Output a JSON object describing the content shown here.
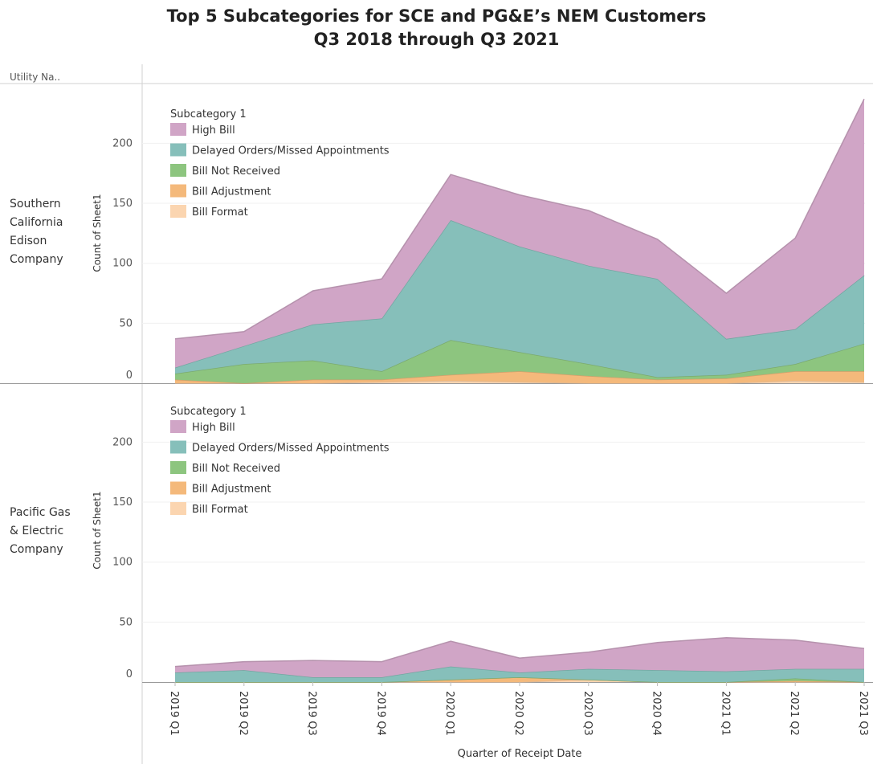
{
  "title": [
    "Top 5 Subcategories for SCE and PG&E’s NEM Customers",
    "Q3 2018 through Q3 2021"
  ],
  "row_header": "Utility Na..",
  "colors": {
    "High Bill": "#d0a5c6",
    "Delayed Orders/Missed Appointments": "#86bfba",
    "Bill Not Received": "#8dc57f",
    "Bill Adjustment": "#f4b97b",
    "Bill Format": "#fbd5b0"
  },
  "chart_data": [
    {
      "type": "area",
      "stacked": true,
      "panel": "Southern California Edison Company",
      "row_label": [
        "Southern",
        "California",
        "Edison",
        "Company"
      ],
      "xlabel": "Quarter of Receipt Date",
      "ylabel": "Count of Sheet1",
      "ylim": [
        0,
        240
      ],
      "yticks": [
        0,
        50,
        100,
        150,
        200
      ],
      "legend_title": "Subcategory 1",
      "legend_position": "top-left",
      "categories": [
        "2019 Q1",
        "2019 Q2",
        "2019 Q3",
        "2019 Q4",
        "2020 Q1",
        "2020 Q2",
        "2020 Q3",
        "2020 Q4",
        "2021 Q1",
        "2021 Q2",
        "2021 Q3"
      ],
      "series": [
        {
          "name": "Bill Format",
          "values": [
            0,
            0,
            0,
            1,
            2,
            1,
            0,
            0,
            0,
            2,
            1
          ]
        },
        {
          "name": "Bill Adjustment",
          "values": [
            3,
            0,
            3,
            2,
            5,
            9,
            6,
            3,
            4,
            8,
            9
          ]
        },
        {
          "name": "Bill Not Received",
          "values": [
            5,
            16,
            16,
            7,
            29,
            16,
            10,
            2,
            3,
            6,
            23
          ]
        },
        {
          "name": "Delayed Orders/Missed Appointments",
          "values": [
            5,
            15,
            30,
            44,
            100,
            88,
            82,
            82,
            30,
            29,
            57
          ]
        },
        {
          "name": "High Bill",
          "values": [
            24,
            12,
            28,
            33,
            38,
            43,
            46,
            33,
            38,
            76,
            147
          ]
        }
      ]
    },
    {
      "type": "area",
      "stacked": true,
      "panel": "Pacific Gas & Electric Company",
      "row_label": [
        "Pacific Gas",
        "& Electric",
        "Company"
      ],
      "xlabel": "Quarter of Receipt Date",
      "ylabel": "Count of Sheet1",
      "ylim": [
        0,
        240
      ],
      "yticks": [
        0,
        50,
        100,
        150,
        200
      ],
      "legend_title": "Subcategory 1",
      "legend_position": "top-left",
      "categories": [
        "2019 Q1",
        "2019 Q2",
        "2019 Q3",
        "2019 Q4",
        "2020 Q1",
        "2020 Q2",
        "2020 Q3",
        "2020 Q4",
        "2021 Q1",
        "2021 Q2",
        "2021 Q3"
      ],
      "series": [
        {
          "name": "Bill Format",
          "values": [
            0,
            0,
            0,
            0,
            0,
            0,
            2,
            0,
            0,
            0,
            0
          ]
        },
        {
          "name": "Bill Adjustment",
          "values": [
            0,
            0,
            0,
            0,
            2,
            4,
            0,
            0,
            0,
            1,
            0
          ]
        },
        {
          "name": "Bill Not Received",
          "values": [
            0,
            0,
            0,
            0,
            0,
            0,
            0,
            0,
            0,
            2,
            0
          ]
        },
        {
          "name": "Delayed Orders/Missed Appointments",
          "values": [
            8,
            10,
            4,
            4,
            11,
            4,
            9,
            10,
            9,
            8,
            11
          ]
        },
        {
          "name": "High Bill",
          "values": [
            5,
            7,
            14,
            13,
            21,
            12,
            14,
            23,
            28,
            24,
            17
          ]
        }
      ]
    }
  ]
}
